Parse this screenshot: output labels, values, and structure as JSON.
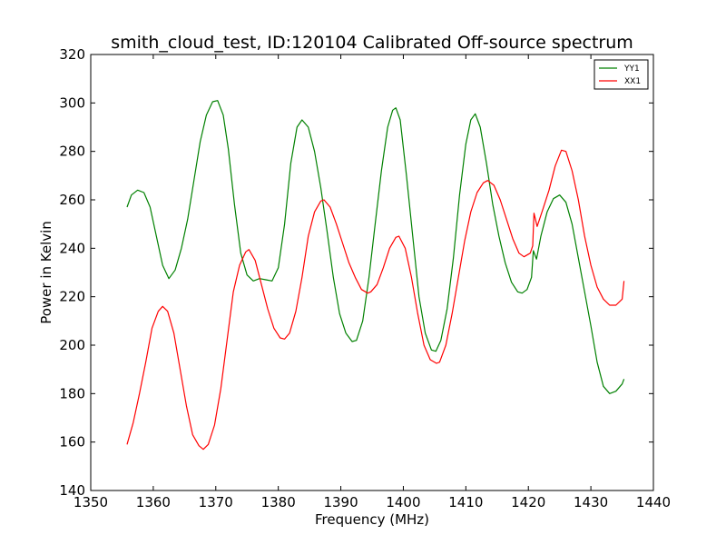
{
  "chart_data": {
    "type": "line",
    "title": "smith_cloud_test, ID:120104 Calibrated Off-source spectrum",
    "xlabel": "Frequency (MHz)",
    "ylabel": "Power in Kelvin",
    "xlim": [
      1350,
      1440
    ],
    "ylim": [
      140,
      320
    ],
    "xticks": [
      1350,
      1360,
      1370,
      1380,
      1390,
      1400,
      1410,
      1420,
      1430,
      1440
    ],
    "yticks": [
      140,
      160,
      180,
      200,
      220,
      240,
      260,
      280,
      300,
      320
    ],
    "grid": false,
    "legend_position": "top-right",
    "series": [
      {
        "name": "YY1",
        "color": "#008000",
        "points": [
          [
            1355.8,
            257
          ],
          [
            1356.5,
            262
          ],
          [
            1357.5,
            264
          ],
          [
            1358.5,
            263
          ],
          [
            1359.5,
            257
          ],
          [
            1360.5,
            245
          ],
          [
            1361.5,
            233
          ],
          [
            1362.5,
            227.5
          ],
          [
            1363.5,
            231
          ],
          [
            1364.5,
            240
          ],
          [
            1365.5,
            252
          ],
          [
            1366.5,
            268
          ],
          [
            1367.5,
            284
          ],
          [
            1368.5,
            295
          ],
          [
            1369.5,
            300.5
          ],
          [
            1370.3,
            301
          ],
          [
            1371.2,
            295
          ],
          [
            1372.0,
            281
          ],
          [
            1373.0,
            258
          ],
          [
            1374.0,
            238
          ],
          [
            1375.0,
            229
          ],
          [
            1376.0,
            226.5
          ],
          [
            1377.0,
            227.5
          ],
          [
            1378.0,
            227
          ],
          [
            1379.0,
            226.5
          ],
          [
            1380.0,
            232
          ],
          [
            1381.0,
            250
          ],
          [
            1382.0,
            275
          ],
          [
            1383.0,
            290
          ],
          [
            1383.8,
            293
          ],
          [
            1384.8,
            290
          ],
          [
            1385.8,
            280
          ],
          [
            1386.8,
            265
          ],
          [
            1387.8,
            247
          ],
          [
            1388.8,
            228
          ],
          [
            1389.8,
            213
          ],
          [
            1390.8,
            205
          ],
          [
            1391.8,
            201.5
          ],
          [
            1392.5,
            202
          ],
          [
            1393.5,
            210
          ],
          [
            1394.5,
            228
          ],
          [
            1395.5,
            250
          ],
          [
            1396.5,
            272
          ],
          [
            1397.5,
            290
          ],
          [
            1398.3,
            297
          ],
          [
            1398.8,
            298
          ],
          [
            1399.5,
            293
          ],
          [
            1400.5,
            270
          ],
          [
            1401.5,
            245
          ],
          [
            1402.5,
            220
          ],
          [
            1403.5,
            205
          ],
          [
            1404.5,
            198
          ],
          [
            1405.2,
            197.5
          ],
          [
            1406.0,
            202
          ],
          [
            1407.0,
            215
          ],
          [
            1408.0,
            236
          ],
          [
            1409.0,
            262
          ],
          [
            1410.0,
            283
          ],
          [
            1410.8,
            293
          ],
          [
            1411.5,
            295.5
          ],
          [
            1412.3,
            290
          ],
          [
            1413.3,
            275
          ],
          [
            1414.3,
            258
          ],
          [
            1415.3,
            245
          ],
          [
            1416.3,
            234
          ],
          [
            1417.3,
            226
          ],
          [
            1418.3,
            222
          ],
          [
            1419.0,
            221.5
          ],
          [
            1419.8,
            223
          ],
          [
            1420.5,
            228
          ],
          [
            1420.8,
            239
          ],
          [
            1421.3,
            235.5
          ],
          [
            1422.0,
            245
          ],
          [
            1423.0,
            255
          ],
          [
            1424.0,
            260.5
          ],
          [
            1425.0,
            262
          ],
          [
            1426.0,
            259
          ],
          [
            1427.0,
            250
          ],
          [
            1428.0,
            236
          ],
          [
            1429.0,
            222
          ],
          [
            1430.0,
            208
          ],
          [
            1431.0,
            193
          ],
          [
            1432.0,
            183
          ],
          [
            1433.0,
            180
          ],
          [
            1434.0,
            181
          ],
          [
            1435.0,
            184
          ],
          [
            1435.3,
            186
          ]
        ]
      },
      {
        "name": "XX1",
        "color": "#ff0000",
        "points": [
          [
            1355.8,
            159
          ],
          [
            1356.8,
            168
          ],
          [
            1357.8,
            180
          ],
          [
            1358.8,
            193
          ],
          [
            1359.8,
            207
          ],
          [
            1360.8,
            214
          ],
          [
            1361.5,
            216
          ],
          [
            1362.3,
            214
          ],
          [
            1363.3,
            205
          ],
          [
            1364.3,
            190
          ],
          [
            1365.3,
            175
          ],
          [
            1366.3,
            163
          ],
          [
            1367.3,
            158.5
          ],
          [
            1368.0,
            157
          ],
          [
            1368.8,
            159
          ],
          [
            1369.8,
            167
          ],
          [
            1370.8,
            182
          ],
          [
            1371.8,
            202
          ],
          [
            1372.8,
            222
          ],
          [
            1373.8,
            233
          ],
          [
            1374.8,
            238.5
          ],
          [
            1375.3,
            239.5
          ],
          [
            1376.3,
            235
          ],
          [
            1377.3,
            225
          ],
          [
            1378.3,
            215
          ],
          [
            1379.3,
            207
          ],
          [
            1380.3,
            203
          ],
          [
            1381.0,
            202.5
          ],
          [
            1381.8,
            205
          ],
          [
            1382.8,
            214
          ],
          [
            1383.8,
            228
          ],
          [
            1384.8,
            245
          ],
          [
            1385.8,
            255
          ],
          [
            1386.8,
            259.5
          ],
          [
            1387.3,
            260
          ],
          [
            1388.3,
            257
          ],
          [
            1389.3,
            250
          ],
          [
            1390.3,
            242
          ],
          [
            1391.3,
            234
          ],
          [
            1392.3,
            228
          ],
          [
            1393.3,
            223
          ],
          [
            1394.3,
            221.5
          ],
          [
            1394.8,
            222
          ],
          [
            1395.8,
            225
          ],
          [
            1396.8,
            232
          ],
          [
            1397.8,
            240
          ],
          [
            1398.8,
            244.5
          ],
          [
            1399.3,
            245
          ],
          [
            1400.3,
            240
          ],
          [
            1401.3,
            228
          ],
          [
            1402.3,
            213
          ],
          [
            1403.3,
            200
          ],
          [
            1404.3,
            194
          ],
          [
            1405.3,
            192.5
          ],
          [
            1405.8,
            193
          ],
          [
            1406.8,
            200
          ],
          [
            1407.8,
            213
          ],
          [
            1408.8,
            228
          ],
          [
            1409.8,
            243
          ],
          [
            1410.8,
            255
          ],
          [
            1411.8,
            263
          ],
          [
            1412.8,
            267
          ],
          [
            1413.5,
            268
          ],
          [
            1414.5,
            266
          ],
          [
            1415.5,
            260
          ],
          [
            1416.5,
            252
          ],
          [
            1417.5,
            244
          ],
          [
            1418.5,
            238
          ],
          [
            1419.3,
            236.5
          ],
          [
            1420.3,
            238
          ],
          [
            1420.7,
            241
          ],
          [
            1420.9,
            254.5
          ],
          [
            1421.4,
            249
          ],
          [
            1422.3,
            256
          ],
          [
            1423.3,
            264
          ],
          [
            1424.3,
            274
          ],
          [
            1425.3,
            280.5
          ],
          [
            1426.0,
            280
          ],
          [
            1427.0,
            272
          ],
          [
            1428.0,
            260
          ],
          [
            1429.0,
            245
          ],
          [
            1430.0,
            233
          ],
          [
            1431.0,
            224
          ],
          [
            1432.0,
            219
          ],
          [
            1433.0,
            216.5
          ],
          [
            1434.0,
            216.5
          ],
          [
            1435.0,
            219
          ],
          [
            1435.3,
            226.5
          ]
        ]
      }
    ]
  }
}
